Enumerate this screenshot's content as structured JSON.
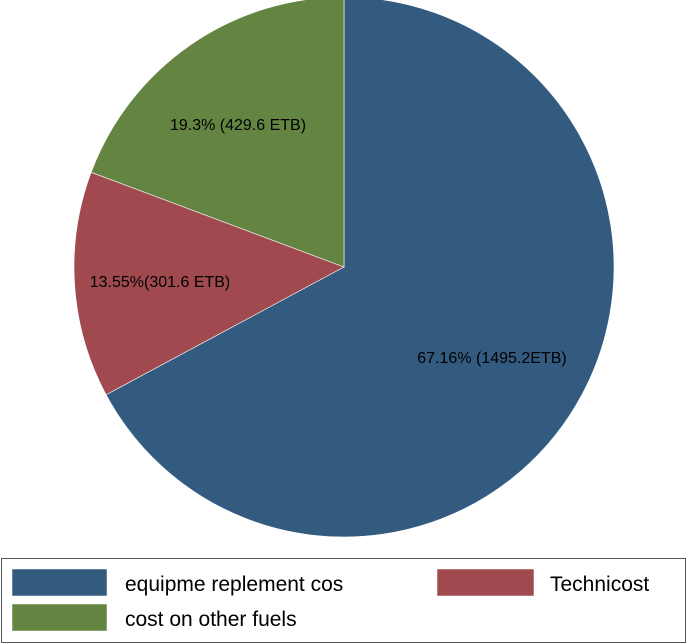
{
  "chart_data": {
    "type": "pie",
    "title": "",
    "slices": [
      {
        "name": "equipme replement cos",
        "value": 1495.2,
        "percent": 67.16,
        "label": "67.16% (1495.2ETB)",
        "color": "#335a7f"
      },
      {
        "name": "Technicost",
        "value": 301.6,
        "percent": 13.55,
        "label": "13.55%(301.6 ETB)",
        "color": "#a04a50"
      },
      {
        "name": "cost on other fuels",
        "value": 429.6,
        "percent": 19.3,
        "label": "19.3% (429.6 ETB)",
        "color": "#648542"
      }
    ],
    "legend_position": "bottom",
    "start_angle": "12 o'clock",
    "direction": "clockwise"
  },
  "legend": {
    "items": [
      {
        "label": "equipme replement cos",
        "color": "#335a7f"
      },
      {
        "label": "Technicost",
        "color": "#a04a50"
      },
      {
        "label": "cost on other fuels",
        "color": "#648542"
      }
    ]
  }
}
